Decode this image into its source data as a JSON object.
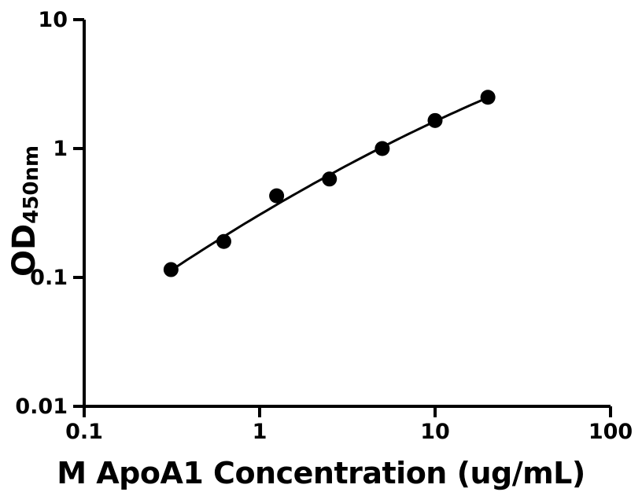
{
  "figure": {
    "background": "#ffffff",
    "axis_color": "#000000",
    "marker_color": "#000000",
    "line_color": "#000000",
    "text_color": "#000000"
  },
  "chart_data": {
    "type": "scatter",
    "title": "",
    "xlabel": "M ApoA1 Concentration (ug/mL)",
    "ylabel_main": "OD",
    "ylabel_sub": "450nm",
    "x_scale": "log",
    "y_scale": "log",
    "xlim": [
      0.1,
      100
    ],
    "ylim": [
      0.01,
      10
    ],
    "x_ticks": [
      "0.1",
      "1",
      "10",
      "100"
    ],
    "y_ticks": [
      "0.01",
      "0.1",
      "1",
      "10"
    ],
    "grid": false,
    "legend": null,
    "points": [
      {
        "x": 0.3125,
        "y": 0.115
      },
      {
        "x": 0.625,
        "y": 0.19
      },
      {
        "x": 1.25,
        "y": 0.43
      },
      {
        "x": 2.5,
        "y": 0.58
      },
      {
        "x": 5,
        "y": 1.0
      },
      {
        "x": 10,
        "y": 1.65
      },
      {
        "x": 20,
        "y": 2.5
      }
    ],
    "fit_line": {
      "model": "log10(y) = a + b*log10(x) + c*log10(x)^2",
      "a": -0.5135,
      "b": 0.8112,
      "c": -0.0865,
      "x_range": [
        0.3125,
        20
      ]
    }
  }
}
